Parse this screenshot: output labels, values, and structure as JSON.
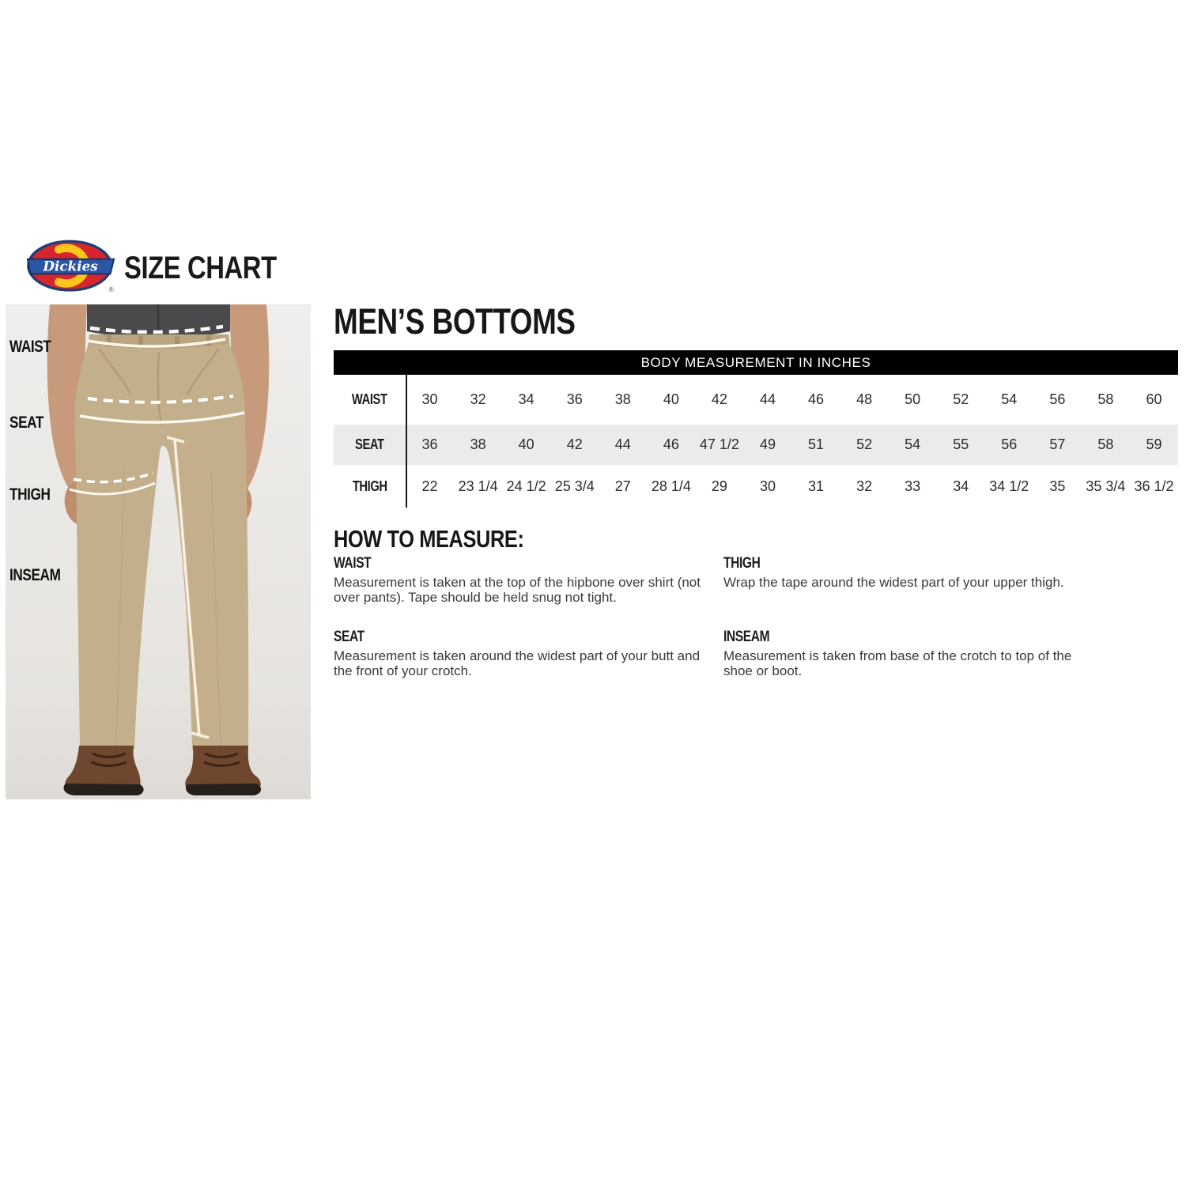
{
  "brand": {
    "logo_text": "Dickies",
    "registered_mark": "®",
    "title": "SIZE CHART",
    "logo_colors": {
      "red": "#d6252d",
      "yellow": "#fcc61c",
      "blue": "#2a56a4",
      "navy": "#1e3f77"
    }
  },
  "photo": {
    "labels": [
      {
        "label": "WAIST"
      },
      {
        "label": "SEAT"
      },
      {
        "label": "THIGH"
      },
      {
        "label": "INSEAM"
      }
    ]
  },
  "section": {
    "heading": "MEN’S BOTTOMS",
    "table": {
      "header": "BODY MEASUREMENT IN INCHES",
      "header_bg": "#000000",
      "zebra_color": "#ebebeb",
      "rows": [
        {
          "label": "WAIST",
          "values": [
            "30",
            "32",
            "34",
            "36",
            "38",
            "40",
            "42",
            "44",
            "46",
            "48",
            "50",
            "52",
            "54",
            "56",
            "58",
            "60"
          ]
        },
        {
          "label": "SEAT",
          "values": [
            "36",
            "38",
            "40",
            "42",
            "44",
            "46",
            "47 1/2",
            "49",
            "51",
            "52",
            "54",
            "55",
            "56",
            "57",
            "58",
            "59"
          ]
        },
        {
          "label": "THIGH",
          "values": [
            "22",
            "23 1/4",
            "24 1/2",
            "25 3/4",
            "27",
            "28 1/4",
            "29",
            "30",
            "31",
            "32",
            "33",
            "34",
            "34 1/2",
            "35",
            "35 3/4",
            "36 1/2"
          ]
        }
      ]
    },
    "how_to_measure": {
      "heading": "HOW TO MEASURE:",
      "items": [
        {
          "term": "WAIST",
          "column": "left",
          "description": "Measurement is taken at the top of the hipbone over shirt (not over pants). Tape should be held snug not tight."
        },
        {
          "term": "SEAT",
          "column": "left",
          "description": "Measurement is taken around the widest part of your butt and the front of your crotch."
        },
        {
          "term": "THIGH",
          "column": "right",
          "description": "Wrap the tape around the widest part of your upper thigh."
        },
        {
          "term": "INSEAM",
          "column": "right",
          "description": "Measurement is taken from base of the crotch to top of the shoe or boot."
        }
      ]
    }
  }
}
